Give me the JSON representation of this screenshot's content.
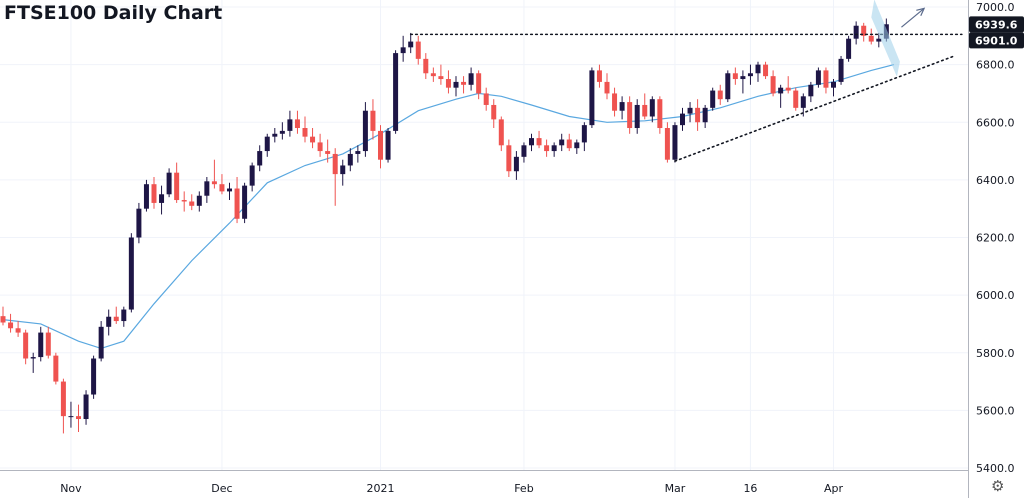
{
  "title": "FTSE100 Daily Chart",
  "chart_data": {
    "type": "candlestick",
    "title": "FTSE100 Daily Chart",
    "xlabel": "",
    "ylabel": "",
    "ylim": [
      5380,
      7020
    ],
    "y_ticks": [
      7000,
      6800,
      6600,
      6400,
      6200,
      6000,
      5800,
      5600,
      5400
    ],
    "y_tick_labels": [
      "7000.0",
      "6800.0",
      "6600.0",
      "6400.0",
      "6200.0",
      "6000.0",
      "5800.0",
      "5600.0",
      "5400.0"
    ],
    "x_tick_labels": [
      {
        "label": "Nov",
        "index": 9
      },
      {
        "label": "Dec",
        "index": 29
      },
      {
        "label": "2021",
        "index": 50
      },
      {
        "label": "Feb",
        "index": 69
      },
      {
        "label": "Mar",
        "index": 89
      },
      {
        "label": "16",
        "index": 99
      },
      {
        "label": "Apr",
        "index": 110
      }
    ],
    "price_labels": [
      {
        "text": "6939.6",
        "value": 6939.6,
        "color": "#131722"
      },
      {
        "text": "6901.0",
        "value": 6901.0,
        "color": "#131722"
      }
    ],
    "up_color": "#1e1646",
    "down_color": "#ef5350",
    "ma_color": "#5aa8e0",
    "grid": true,
    "candles": [
      [
        5927,
        5960,
        5895,
        5905
      ],
      [
        5905,
        5935,
        5870,
        5885
      ],
      [
        5885,
        5910,
        5855,
        5870
      ],
      [
        5870,
        5880,
        5760,
        5780
      ],
      [
        5780,
        5800,
        5730,
        5785
      ],
      [
        5785,
        5890,
        5770,
        5870
      ],
      [
        5870,
        5890,
        5780,
        5790
      ],
      [
        5790,
        5800,
        5690,
        5700
      ],
      [
        5700,
        5710,
        5520,
        5580
      ],
      [
        5580,
        5630,
        5540,
        5580
      ],
      [
        5580,
        5620,
        5525,
        5570
      ],
      [
        5570,
        5670,
        5550,
        5655
      ],
      [
        5655,
        5790,
        5640,
        5780
      ],
      [
        5780,
        5910,
        5770,
        5890
      ],
      [
        5890,
        5950,
        5860,
        5925
      ],
      [
        5925,
        5960,
        5900,
        5910
      ],
      [
        5910,
        5960,
        5890,
        5950
      ],
      [
        5950,
        6215,
        5940,
        6200
      ],
      [
        6200,
        6320,
        6180,
        6300
      ],
      [
        6300,
        6400,
        6290,
        6385
      ],
      [
        6385,
        6410,
        6300,
        6320
      ],
      [
        6320,
        6380,
        6280,
        6350
      ],
      [
        6350,
        6440,
        6340,
        6425
      ],
      [
        6425,
        6460,
        6320,
        6330
      ],
      [
        6330,
        6360,
        6290,
        6325
      ],
      [
        6325,
        6350,
        6295,
        6310
      ],
      [
        6310,
        6360,
        6290,
        6345
      ],
      [
        6345,
        6410,
        6320,
        6395
      ],
      [
        6395,
        6470,
        6370,
        6385
      ],
      [
        6385,
        6420,
        6350,
        6360
      ],
      [
        6360,
        6390,
        6330,
        6370
      ],
      [
        6370,
        6410,
        6250,
        6265
      ],
      [
        6265,
        6390,
        6250,
        6380
      ],
      [
        6380,
        6460,
        6360,
        6450
      ],
      [
        6450,
        6520,
        6430,
        6500
      ],
      [
        6500,
        6560,
        6480,
        6550
      ],
      [
        6550,
        6580,
        6530,
        6560
      ],
      [
        6560,
        6600,
        6540,
        6570
      ],
      [
        6570,
        6640,
        6550,
        6610
      ],
      [
        6610,
        6640,
        6560,
        6580
      ],
      [
        6580,
        6620,
        6530,
        6550
      ],
      [
        6550,
        6580,
        6510,
        6530
      ],
      [
        6530,
        6560,
        6480,
        6500
      ],
      [
        6500,
        6540,
        6460,
        6490
      ],
      [
        6490,
        6510,
        6310,
        6420
      ],
      [
        6420,
        6470,
        6380,
        6450
      ],
      [
        6450,
        6510,
        6430,
        6490
      ],
      [
        6490,
        6520,
        6460,
        6500
      ],
      [
        6500,
        6670,
        6480,
        6640
      ],
      [
        6640,
        6680,
        6540,
        6570
      ],
      [
        6570,
        6590,
        6440,
        6470
      ],
      [
        6470,
        6580,
        6460,
        6570
      ],
      [
        6570,
        6850,
        6560,
        6840
      ],
      [
        6840,
        6900,
        6810,
        6860
      ],
      [
        6860,
        6910,
        6840,
        6880
      ],
      [
        6880,
        6900,
        6800,
        6820
      ],
      [
        6820,
        6840,
        6750,
        6770
      ],
      [
        6770,
        6790,
        6740,
        6760
      ],
      [
        6760,
        6800,
        6730,
        6750
      ],
      [
        6750,
        6780,
        6700,
        6720
      ],
      [
        6720,
        6760,
        6690,
        6740
      ],
      [
        6740,
        6760,
        6700,
        6730
      ],
      [
        6730,
        6790,
        6710,
        6770
      ],
      [
        6770,
        6780,
        6680,
        6700
      ],
      [
        6700,
        6720,
        6640,
        6660
      ],
      [
        6660,
        6680,
        6580,
        6610
      ],
      [
        6610,
        6620,
        6500,
        6520
      ],
      [
        6520,
        6540,
        6410,
        6430
      ],
      [
        6430,
        6500,
        6400,
        6480
      ],
      [
        6480,
        6530,
        6460,
        6520
      ],
      [
        6520,
        6560,
        6500,
        6545
      ],
      [
        6545,
        6570,
        6510,
        6520
      ],
      [
        6520,
        6540,
        6480,
        6500
      ],
      [
        6500,
        6530,
        6480,
        6520
      ],
      [
        6520,
        6560,
        6500,
        6540
      ],
      [
        6540,
        6560,
        6500,
        6510
      ],
      [
        6510,
        6540,
        6490,
        6530
      ],
      [
        6530,
        6600,
        6500,
        6590
      ],
      [
        6590,
        6790,
        6580,
        6780
      ],
      [
        6780,
        6800,
        6720,
        6740
      ],
      [
        6740,
        6770,
        6680,
        6700
      ],
      [
        6700,
        6720,
        6620,
        6640
      ],
      [
        6640,
        6690,
        6610,
        6670
      ],
      [
        6670,
        6690,
        6560,
        6580
      ],
      [
        6580,
        6680,
        6560,
        6660
      ],
      [
        6660,
        6700,
        6610,
        6620
      ],
      [
        6620,
        6690,
        6600,
        6680
      ],
      [
        6680,
        6690,
        6560,
        6580
      ],
      [
        6580,
        6600,
        6460,
        6470
      ],
      [
        6470,
        6600,
        6460,
        6590
      ],
      [
        6590,
        6650,
        6570,
        6630
      ],
      [
        6630,
        6670,
        6600,
        6650
      ],
      [
        6650,
        6680,
        6570,
        6600
      ],
      [
        6600,
        6660,
        6580,
        6650
      ],
      [
        6650,
        6720,
        6640,
        6710
      ],
      [
        6710,
        6730,
        6660,
        6680
      ],
      [
        6680,
        6780,
        6670,
        6770
      ],
      [
        6770,
        6790,
        6730,
        6750
      ],
      [
        6750,
        6780,
        6700,
        6760
      ],
      [
        6760,
        6800,
        6730,
        6770
      ],
      [
        6770,
        6810,
        6740,
        6800
      ],
      [
        6800,
        6810,
        6750,
        6760
      ],
      [
        6760,
        6780,
        6690,
        6700
      ],
      [
        6700,
        6730,
        6650,
        6720
      ],
      [
        6720,
        6760,
        6700,
        6710
      ],
      [
        6710,
        6720,
        6640,
        6650
      ],
      [
        6650,
        6700,
        6620,
        6690
      ],
      [
        6690,
        6740,
        6670,
        6730
      ],
      [
        6730,
        6790,
        6720,
        6780
      ],
      [
        6780,
        6790,
        6700,
        6720
      ],
      [
        6720,
        6750,
        6690,
        6740
      ],
      [
        6740,
        6830,
        6730,
        6820
      ],
      [
        6820,
        6900,
        6810,
        6890
      ],
      [
        6890,
        6950,
        6870,
        6935
      ],
      [
        6935,
        6945,
        6880,
        6900
      ],
      [
        6900,
        6925,
        6870,
        6880
      ],
      [
        6880,
        6910,
        6860,
        6890
      ],
      [
        6890,
        6960,
        6880,
        6940
      ]
    ],
    "moving_average": [
      {
        "index": 0,
        "value": 5915
      },
      {
        "index": 5,
        "value": 5900
      },
      {
        "index": 10,
        "value": 5840
      },
      {
        "index": 13,
        "value": 5815
      },
      {
        "index": 16,
        "value": 5840
      },
      {
        "index": 20,
        "value": 5970
      },
      {
        "index": 25,
        "value": 6120
      },
      {
        "index": 30,
        "value": 6250
      },
      {
        "index": 35,
        "value": 6390
      },
      {
        "index": 40,
        "value": 6450
      },
      {
        "index": 45,
        "value": 6490
      },
      {
        "index": 50,
        "value": 6560
      },
      {
        "index": 55,
        "value": 6640
      },
      {
        "index": 60,
        "value": 6680
      },
      {
        "index": 63,
        "value": 6700
      },
      {
        "index": 66,
        "value": 6690
      },
      {
        "index": 70,
        "value": 6660
      },
      {
        "index": 75,
        "value": 6620
      },
      {
        "index": 80,
        "value": 6600
      },
      {
        "index": 85,
        "value": 6605
      },
      {
        "index": 90,
        "value": 6620
      },
      {
        "index": 95,
        "value": 6650
      },
      {
        "index": 100,
        "value": 6690
      },
      {
        "index": 105,
        "value": 6720
      },
      {
        "index": 110,
        "value": 6740
      },
      {
        "index": 115,
        "value": 6780
      },
      {
        "index": 118,
        "value": 6800
      }
    ],
    "annotations": [
      {
        "type": "resistance-line",
        "from": {
          "index": 54,
          "value": 6905
        },
        "to": {
          "index": 127,
          "value": 6905
        }
      },
      {
        "type": "support-line",
        "from": {
          "index": 89,
          "value": 6465
        },
        "to": {
          "index": 126,
          "value": 6830
        }
      },
      {
        "type": "arrow",
        "from": {
          "index": 119,
          "value": 6930
        },
        "to": {
          "index": 122,
          "value": 6995
        }
      },
      {
        "type": "shaded-flag",
        "from": {
          "index": 115,
          "value": 6950
        },
        "to": {
          "index": 118,
          "value": 6845
        }
      }
    ]
  }
}
